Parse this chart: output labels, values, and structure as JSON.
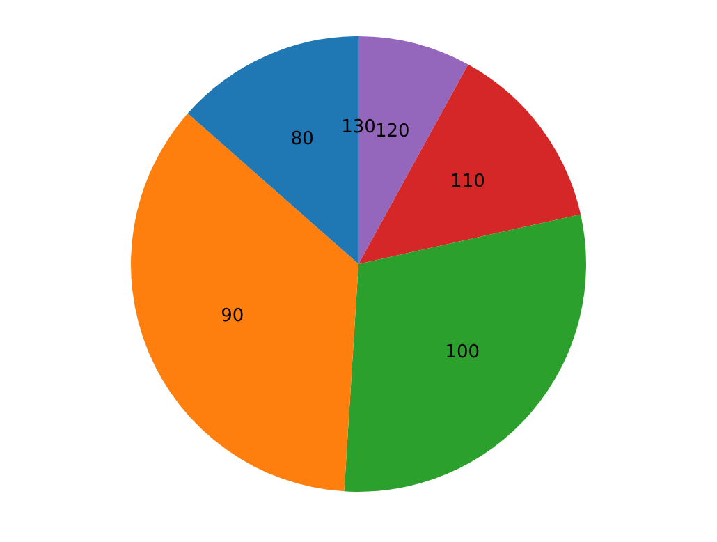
{
  "chart_data": {
    "type": "pie",
    "categories": [
      "80",
      "90",
      "100",
      "110",
      "120",
      "130"
    ],
    "values": [
      13.5,
      35.5,
      29.5,
      13.5,
      8,
      0
    ],
    "colors": [
      "#1f77b4",
      "#ff7f0e",
      "#2ca02c",
      "#d62728",
      "#9467bd",
      "#8c564b"
    ],
    "legend": false
  }
}
